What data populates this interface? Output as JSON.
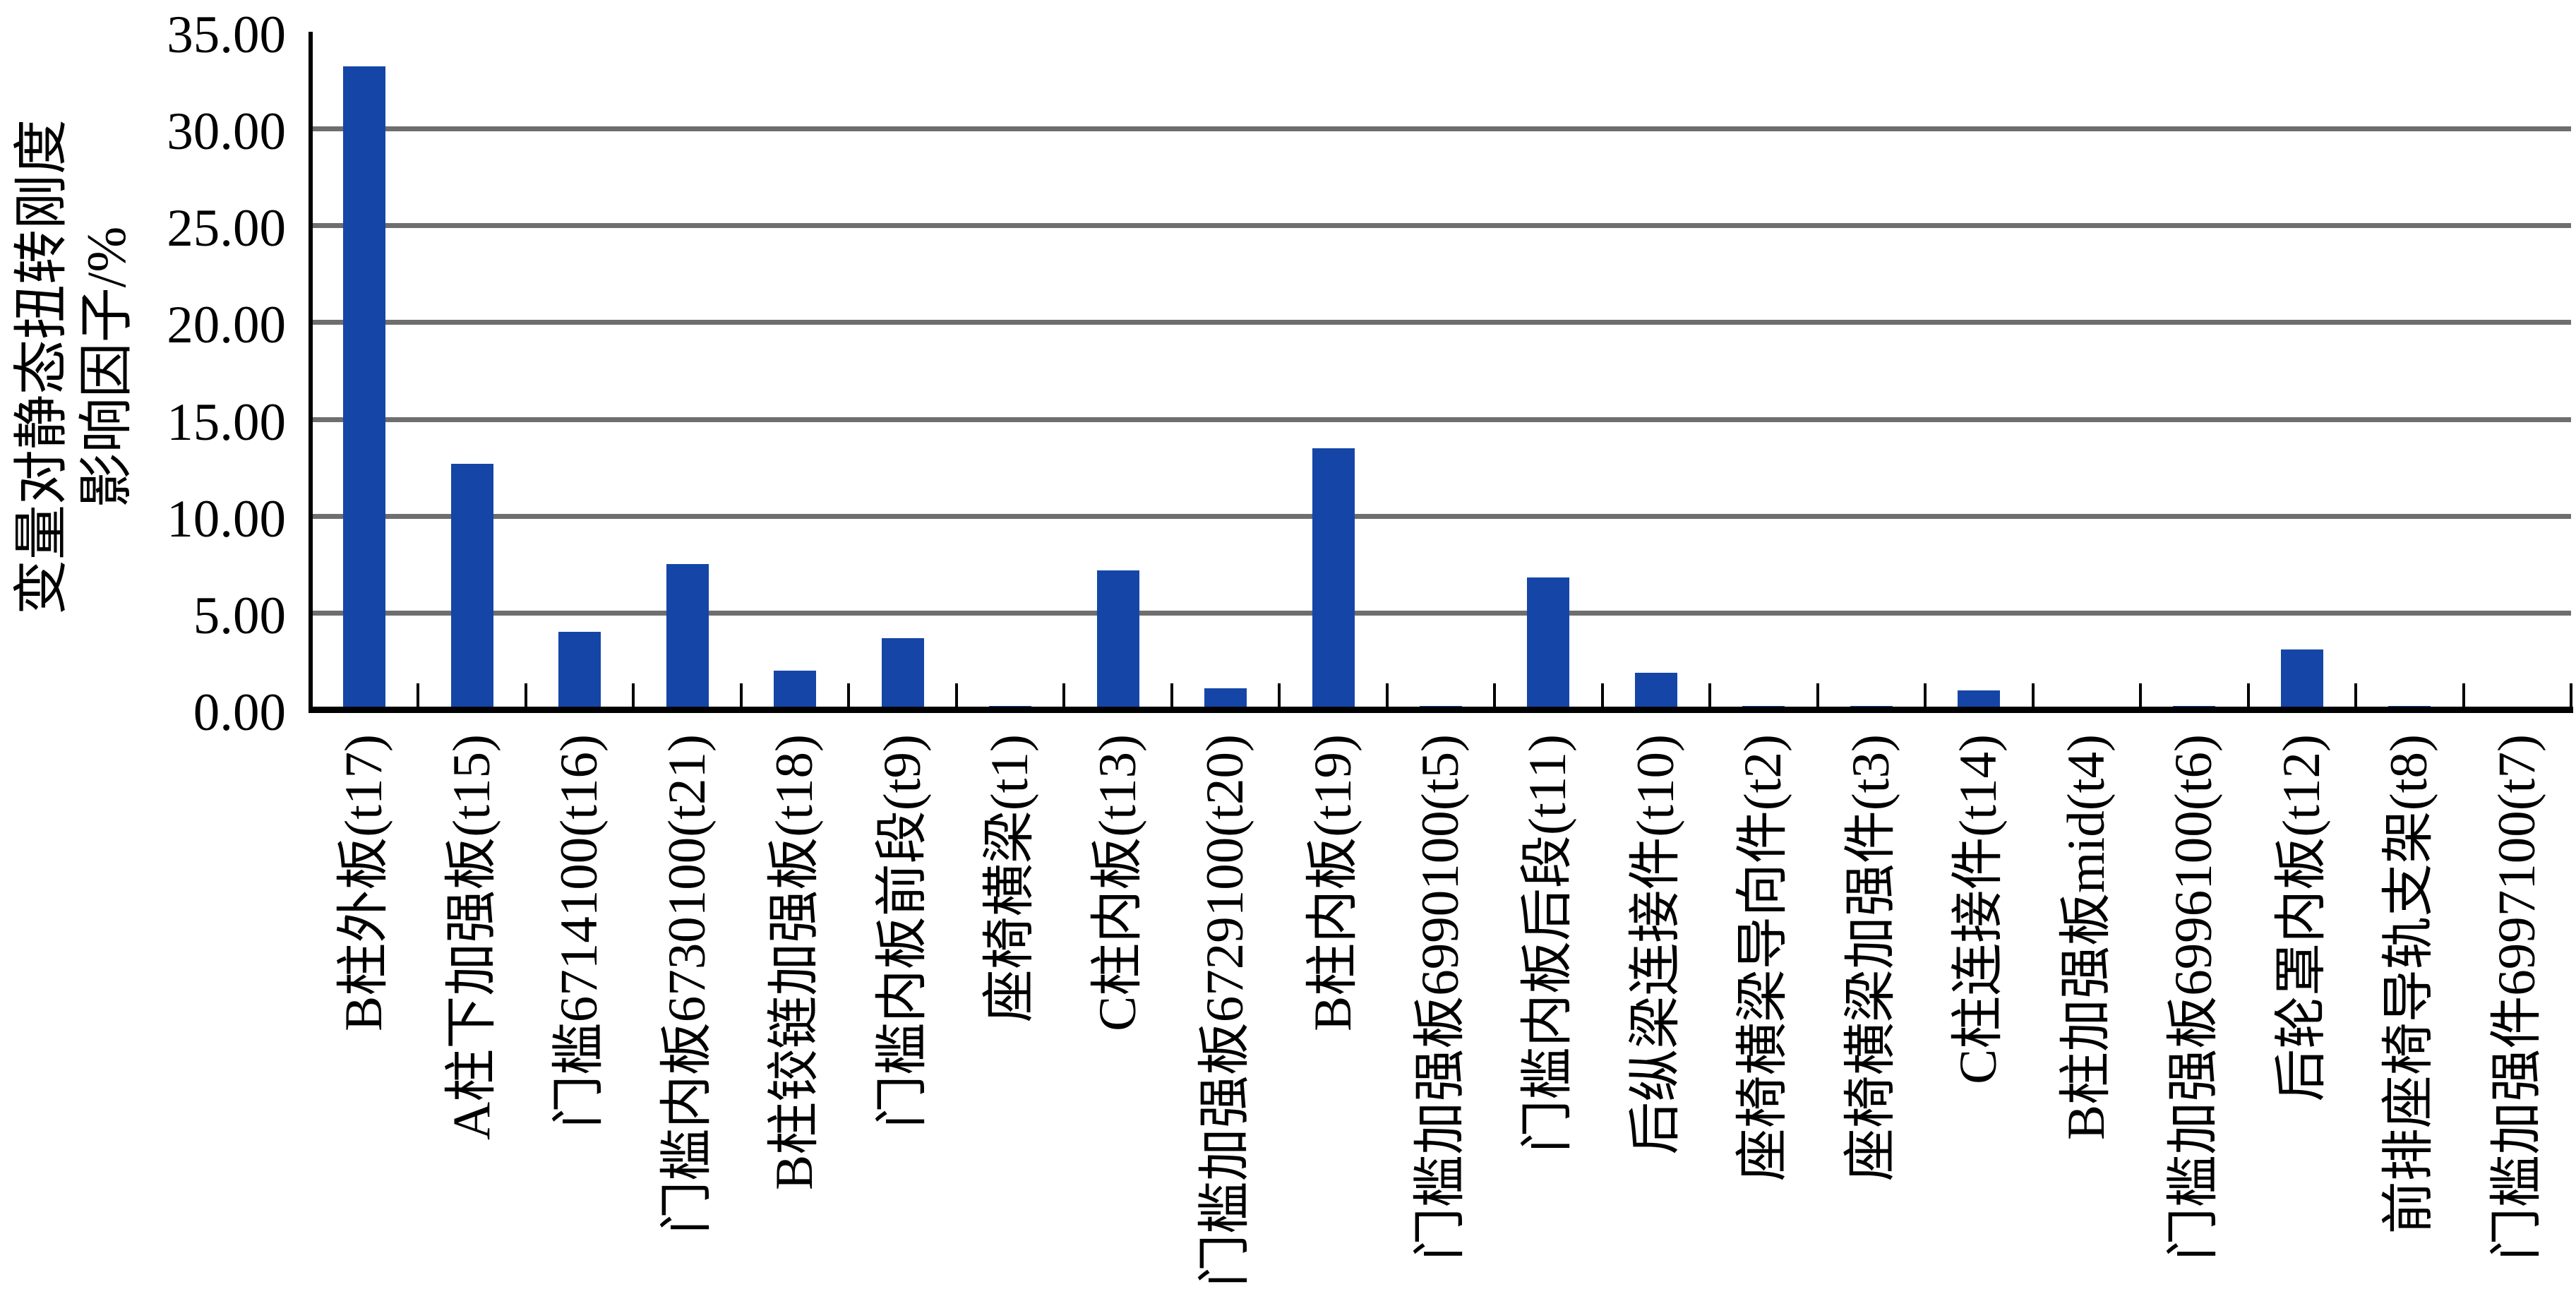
{
  "chart_data": {
    "type": "bar",
    "title": "",
    "ylabel_line1": "变量对静态扭转刚度",
    "ylabel_line2": "影响因子/%",
    "xlabel": "",
    "ylim": [
      0,
      35
    ],
    "ytick_step": 5,
    "ytick_labels": [
      "0.00",
      "5.00",
      "10.00",
      "15.00",
      "20.00",
      "25.00",
      "30.00",
      "35.00"
    ],
    "grid": "horizontal",
    "legend": "none",
    "bar_color": "#1546a7",
    "gridline_color": "#6e6e6e",
    "axis_color": "#000000",
    "categories": [
      "B柱外板(t17)",
      "A柱下加强板(t15)",
      "门槛6714100(t16)",
      "门槛内板6730100(t21)",
      "B柱铰链加强板(t18)",
      "门槛内板前段(t9)",
      "座椅横梁(t1)",
      "C柱内板(t13)",
      "门槛加强板6729100(t20)",
      "B柱内板(t19)",
      "门槛加强板6990100(t5)",
      "门槛内板后段(t11)",
      "后纵梁连接件(t10)",
      "座椅横梁导向件(t2)",
      "座椅横梁加强件(t3)",
      "C柱连接件(t14)",
      "B柱加强板mid(t4)",
      "门槛加强板6996100(t6)",
      "后轮罩内板(t12)",
      "前排座椅导轨支架(t8)",
      "门槛加强件6997100(t7)"
    ],
    "values": [
      33.2,
      12.7,
      4.0,
      7.5,
      2.0,
      3.7,
      0.2,
      7.2,
      1.1,
      13.5,
      0.2,
      6.8,
      1.9,
      0.2,
      0.2,
      1.0,
      0.0,
      0.2,
      3.1,
      0.2,
      0.15
    ]
  }
}
